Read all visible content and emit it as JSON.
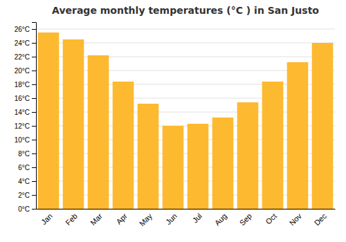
{
  "chart_data": {
    "type": "bar",
    "title": "Average monthly temperatures (°C ) in San Justo",
    "categories": [
      "Jan",
      "Feb",
      "Mar",
      "Apr",
      "May",
      "Jun",
      "Jul",
      "Aug",
      "Sep",
      "Oct",
      "Nov",
      "Dec"
    ],
    "values": [
      25.5,
      24.5,
      22.2,
      18.4,
      15.2,
      12.0,
      12.3,
      13.2,
      15.4,
      18.4,
      21.2,
      24.0
    ],
    "color": "#FDB930",
    "ylim": [
      0,
      27
    ],
    "yticks": [
      {
        "value": 0,
        "label": "0°C"
      },
      {
        "value": 2,
        "label": "2°C"
      },
      {
        "value": 4,
        "label": "4°C"
      },
      {
        "value": 6,
        "label": "6°C"
      },
      {
        "value": 8,
        "label": "8°C"
      },
      {
        "value": 10,
        "label": "10°C"
      },
      {
        "value": 12,
        "label": "12°C"
      },
      {
        "value": 14,
        "label": "14°C"
      },
      {
        "value": 16,
        "label": "16°C"
      },
      {
        "value": 18,
        "label": "18°C"
      },
      {
        "value": 20,
        "label": "20°C"
      },
      {
        "value": 22,
        "label": "22°C"
      },
      {
        "value": 24,
        "label": "24°C"
      },
      {
        "value": 26,
        "label": "26°C"
      }
    ],
    "grid": true
  }
}
